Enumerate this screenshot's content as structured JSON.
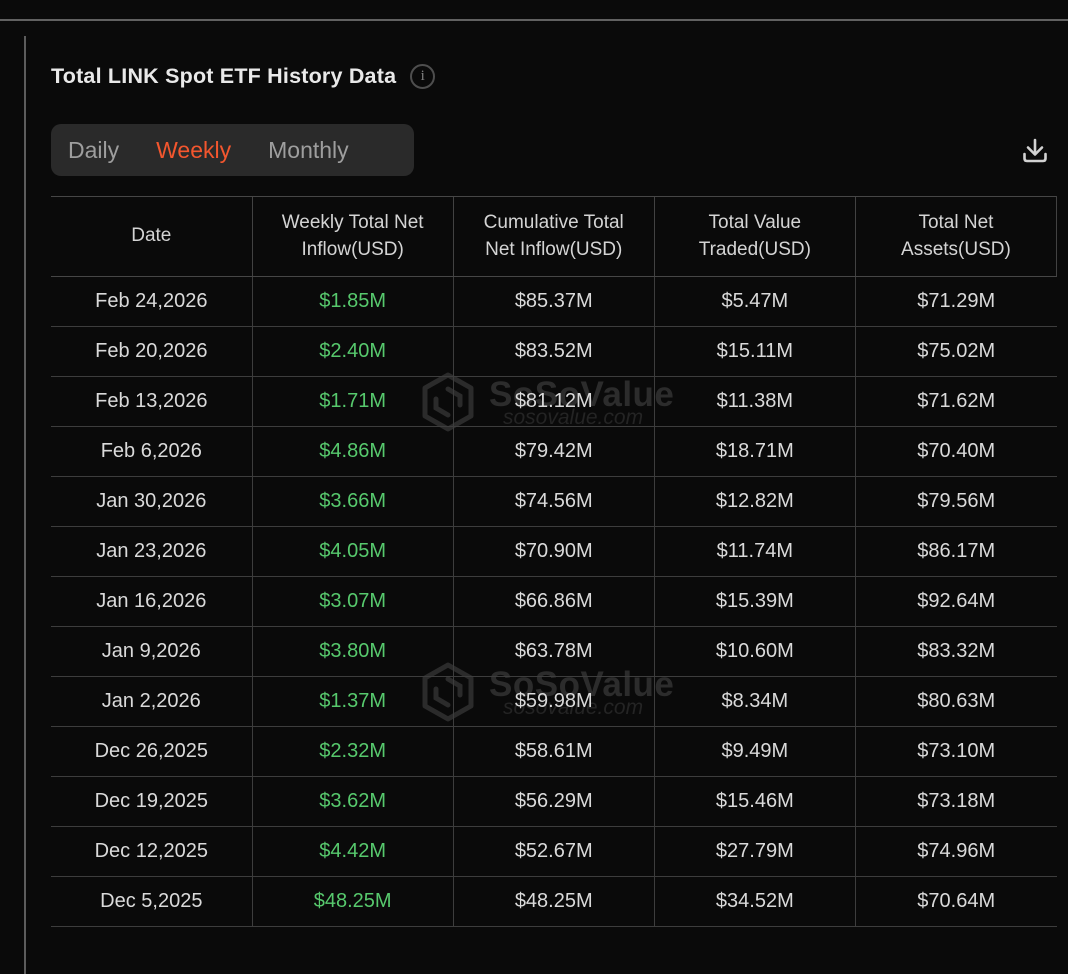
{
  "header": {
    "title": "Total LINK Spot ETF History Data"
  },
  "tabs": {
    "items": [
      {
        "label": "Daily",
        "active": false
      },
      {
        "label": "Weekly",
        "active": true
      },
      {
        "label": "Monthly",
        "active": false
      }
    ]
  },
  "watermark": {
    "brand": "SoSoValue",
    "domain": "sosovalue.com"
  },
  "colors": {
    "accent_orange": "#f3562e",
    "positive_green": "#57c96d",
    "border": "#3d3d3d",
    "background": "#0a0a0a"
  },
  "table": {
    "columns": [
      "Date",
      "Weekly Total Net Inflow(USD)",
      "Cumulative Total Net Inflow(USD)",
      "Total Value Traded(USD)",
      "Total Net Assets(USD)"
    ],
    "column_keys": [
      "date",
      "weekly-net-inflow",
      "cumulative-net-inflow",
      "value-traded",
      "net-assets"
    ],
    "rows": [
      [
        "Feb 24,2026",
        "$1.85M",
        "$85.37M",
        "$5.47M",
        "$71.29M"
      ],
      [
        "Feb 20,2026",
        "$2.40M",
        "$83.52M",
        "$15.11M",
        "$75.02M"
      ],
      [
        "Feb 13,2026",
        "$1.71M",
        "$81.12M",
        "$11.38M",
        "$71.62M"
      ],
      [
        "Feb 6,2026",
        "$4.86M",
        "$79.42M",
        "$18.71M",
        "$70.40M"
      ],
      [
        "Jan 30,2026",
        "$3.66M",
        "$74.56M",
        "$12.82M",
        "$79.56M"
      ],
      [
        "Jan 23,2026",
        "$4.05M",
        "$70.90M",
        "$11.74M",
        "$86.17M"
      ],
      [
        "Jan 16,2026",
        "$3.07M",
        "$66.86M",
        "$15.39M",
        "$92.64M"
      ],
      [
        "Jan 9,2026",
        "$3.80M",
        "$63.78M",
        "$10.60M",
        "$83.32M"
      ],
      [
        "Jan 2,2026",
        "$1.37M",
        "$59.98M",
        "$8.34M",
        "$80.63M"
      ],
      [
        "Dec 26,2025",
        "$2.32M",
        "$58.61M",
        "$9.49M",
        "$73.10M"
      ],
      [
        "Dec 19,2025",
        "$3.62M",
        "$56.29M",
        "$15.46M",
        "$73.18M"
      ],
      [
        "Dec 12,2025",
        "$4.42M",
        "$52.67M",
        "$27.79M",
        "$74.96M"
      ],
      [
        "Dec 5,2025",
        "$48.25M",
        "$48.25M",
        "$34.52M",
        "$70.64M"
      ]
    ],
    "green_column_index": 1
  },
  "icons": {
    "info": "i",
    "download": "download-arrow-tray"
  }
}
